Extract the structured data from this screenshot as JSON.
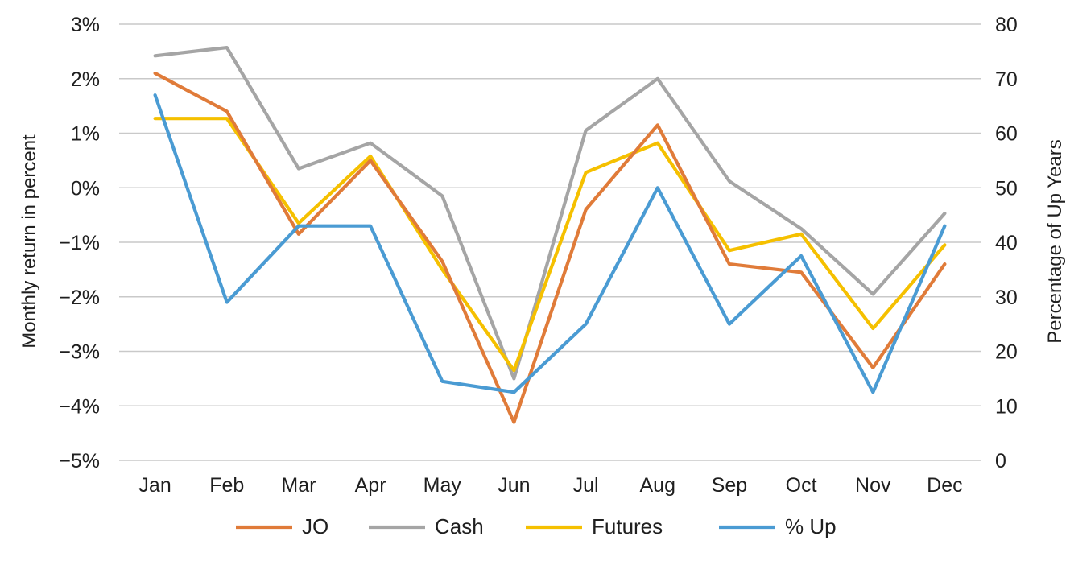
{
  "chart_data": {
    "type": "line",
    "title": "",
    "xlabel": "",
    "ylabel": "Monthly return in percent",
    "y2label": "Percentage of Up Years",
    "categories": [
      "Jan",
      "Feb",
      "Mar",
      "Apr",
      "May",
      "Jun",
      "Jul",
      "Aug",
      "Sep",
      "Oct",
      "Nov",
      "Dec"
    ],
    "ylim": [
      -5,
      3
    ],
    "yticks": [
      "3%",
      "2%",
      "1%",
      "0%",
      "−1%",
      "−2%",
      "−3%",
      "−4%",
      "−5%"
    ],
    "y2lim": [
      0,
      80
    ],
    "y2ticks": [
      "80",
      "70",
      "60",
      "50",
      "40",
      "30",
      "20",
      "10",
      "0"
    ],
    "grid": true,
    "legend_position": "bottom",
    "series": [
      {
        "name": "JO",
        "axis": "left",
        "color": "#e07b39",
        "values": [
          2.1,
          1.4,
          -0.85,
          0.5,
          -1.35,
          -4.3,
          -0.4,
          1.15,
          -1.4,
          -1.55,
          -3.3,
          -1.4
        ]
      },
      {
        "name": "Cash",
        "axis": "left",
        "color": "#a5a5a5",
        "values": [
          2.42,
          2.57,
          0.35,
          0.82,
          -0.15,
          -3.5,
          1.05,
          2.0,
          0.12,
          -0.75,
          -1.95,
          -0.47
        ]
      },
      {
        "name": "Futures",
        "axis": "left",
        "color": "#f5c000",
        "values": [
          1.27,
          1.27,
          -0.65,
          0.58,
          -1.5,
          -3.35,
          0.28,
          0.82,
          -1.15,
          -0.85,
          -2.58,
          -1.05
        ]
      },
      {
        "name": "% Up",
        "axis": "right",
        "color": "#4a9bd3",
        "values": [
          67,
          29,
          43,
          43,
          14.5,
          12.5,
          25,
          50,
          25,
          37.5,
          12.5,
          43
        ]
      }
    ]
  }
}
